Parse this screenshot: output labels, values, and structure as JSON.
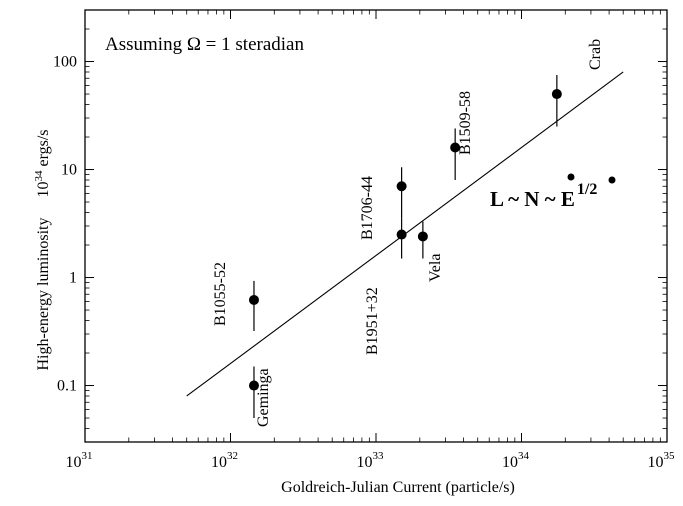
{
  "chart_data": {
    "type": "scatter",
    "annotation": "Assuming Ω = 1 steradian",
    "xlabel": "Goldreich-Julian Current    (particle/s)",
    "ylabel": "High-energy luminosity",
    "yunit_base": "10",
    "yunit_exp": "34",
    "yunit_rest": " ergs/s",
    "xscale": "log",
    "yscale": "log",
    "xlim": [
      1e+31,
      1e+35
    ],
    "ylim": [
      0.03,
      300
    ],
    "xticks": [
      {
        "value": 1e+31,
        "base": "10",
        "exp": "31"
      },
      {
        "value": 1e+32,
        "base": "10",
        "exp": "32"
      },
      {
        "value": 1e+33,
        "base": "10",
        "exp": "33"
      },
      {
        "value": 1e+34,
        "base": "10",
        "exp": "34"
      },
      {
        "value": 1e+35,
        "base": "10",
        "exp": "35"
      }
    ],
    "yticks": [
      {
        "value": 0.1,
        "label": "0.1"
      },
      {
        "value": 1,
        "label": "1"
      },
      {
        "value": 10,
        "label": "10"
      },
      {
        "value": 100,
        "label": "100"
      }
    ],
    "points": [
      {
        "name": "Crab",
        "x": 1.75e+34,
        "y": 50,
        "ylo": 25,
        "yhi": 75
      },
      {
        "name": "B1509-58",
        "x": 3.5e+33,
        "y": 16,
        "ylo": 8,
        "yhi": 24
      },
      {
        "name": "B1706-44",
        "x": 1.5e+33,
        "y": 7,
        "ylo": 3.5,
        "yhi": 10.5
      },
      {
        "name": "B1951+32",
        "x": 1.5e+33,
        "y": 2.5,
        "ylo": 1.5,
        "yhi": 3.5
      },
      {
        "name": "Vela",
        "x": 2.1e+33,
        "y": 2.4,
        "ylo": 1.5,
        "yhi": 3.3
      },
      {
        "name": "B1055-52",
        "x": 1.45e+32,
        "y": 0.62,
        "ylo": 0.32,
        "yhi": 0.93
      },
      {
        "name": "Geminga",
        "x": 1.45e+32,
        "y": 0.1,
        "ylo": 0.05,
        "yhi": 0.15
      }
    ],
    "fit_line": {
      "x": [
        5e+31,
        5e+34
      ],
      "y": [
        0.08,
        80
      ]
    },
    "relation": {
      "main": "L ~ N ~ E",
      "exp": "1/2"
    }
  }
}
